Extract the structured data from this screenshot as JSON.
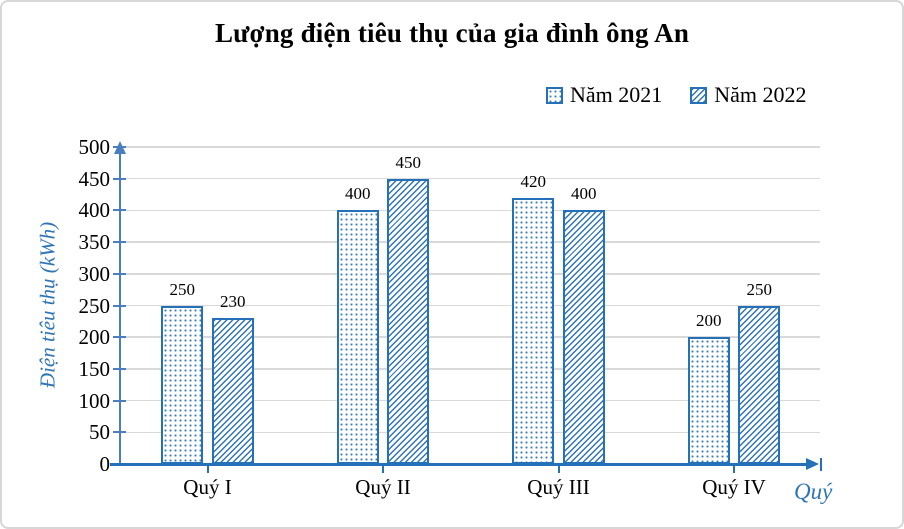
{
  "window": {
    "background": "#ffffff",
    "border_color": "#d7d7d7"
  },
  "chart_data": {
    "type": "bar",
    "title": "Lượng điện tiêu thụ của gia đình ông An",
    "categories": [
      "Quý I",
      "Quý II",
      "Quý III",
      "Quý IV"
    ],
    "series": [
      {
        "name": "Năm 2021",
        "pattern": "dots",
        "values": [
          250,
          400,
          420,
          200
        ]
      },
      {
        "name": "Năm 2022",
        "pattern": "hatch",
        "values": [
          230,
          450,
          400,
          250
        ]
      }
    ],
    "xlabel": "Quý",
    "ylabel": "Điện tiêu thụ (kWh)",
    "ylim": [
      0,
      500
    ],
    "ytick_step": 50,
    "grid": true,
    "data_labels": true,
    "legend_position": "top-right",
    "colors": {
      "accent": "#2471B9",
      "hatch_line": "#2E75B6",
      "dot": "#3F7CBA",
      "y_axis": "#4A7EBE",
      "gridline": "#D9D9D9",
      "title_text": "#000000",
      "tick_text": "#000000"
    }
  }
}
